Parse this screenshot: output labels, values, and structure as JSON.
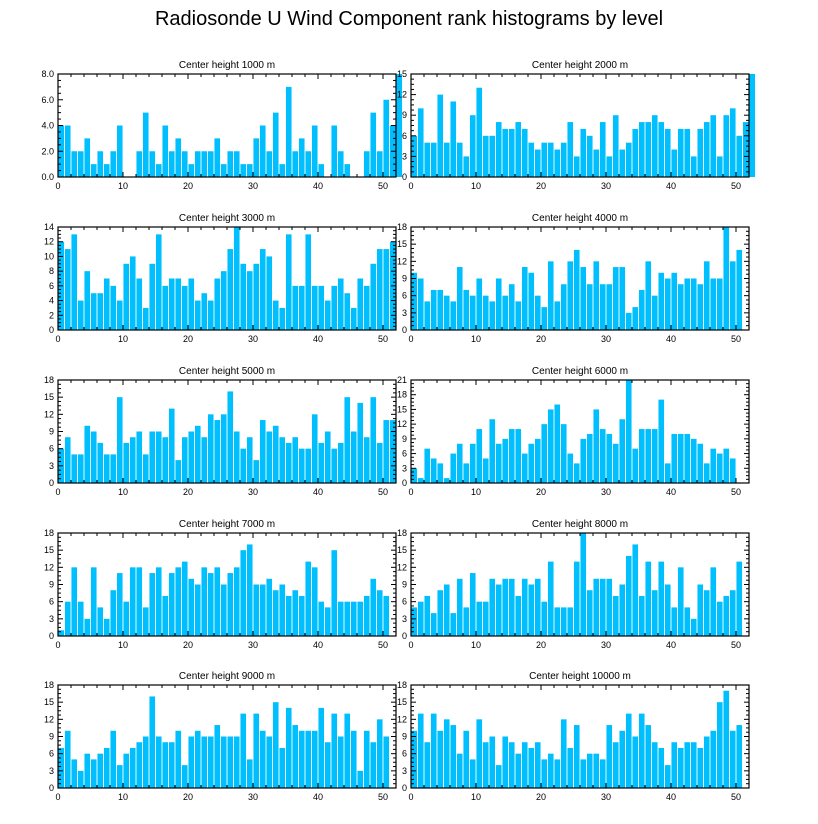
{
  "title": "Radiosonde U Wind Component rank histograms by level",
  "colors": {
    "bar": "#00BFFF",
    "axis": "#000000"
  },
  "chart_data": [
    {
      "type": "bar",
      "title": "Center height 1000 m",
      "xlim": [
        0,
        52
      ],
      "ylim": [
        0,
        8
      ],
      "yticks": [
        "0.0",
        "2.0",
        "4.0",
        "6.0",
        "8.0"
      ],
      "yticks_values": [
        0,
        2,
        4,
        6,
        8
      ],
      "xticks": [
        "0",
        "10",
        "20",
        "30",
        "40",
        "50"
      ],
      "values": [
        4,
        4,
        2,
        2,
        3,
        1,
        2,
        1,
        2,
        4,
        0,
        0,
        2,
        5,
        2,
        1,
        4,
        2,
        3,
        2,
        1,
        2,
        2,
        2,
        3,
        1,
        2,
        2,
        1,
        1,
        3,
        4,
        2,
        5,
        1,
        7,
        2,
        3,
        2,
        4,
        1,
        0,
        4,
        2,
        1,
        0,
        0,
        2,
        5,
        2,
        6,
        4,
        8
      ]
    },
    {
      "type": "bar",
      "title": "Center height 2000 m",
      "xlim": [
        0,
        52
      ],
      "ylim": [
        0,
        15
      ],
      "yticks": [
        "0",
        "3",
        "6",
        "9",
        "12",
        "15"
      ],
      "yticks_values": [
        0,
        3,
        6,
        9,
        12,
        15
      ],
      "xticks": [
        "0",
        "10",
        "20",
        "30",
        "40",
        "50"
      ],
      "values": [
        6,
        10,
        5,
        5,
        12,
        5,
        11,
        5,
        3,
        9,
        13,
        6,
        6,
        8,
        7,
        7,
        8,
        7,
        5,
        4,
        5,
        5,
        4,
        5,
        8,
        3,
        7,
        6,
        4,
        8,
        3,
        9,
        4,
        5,
        7,
        8,
        8,
        9,
        8,
        7,
        4,
        7,
        7,
        3,
        7,
        8,
        9,
        3,
        9,
        10,
        6,
        8,
        15
      ]
    },
    {
      "type": "bar",
      "title": "Center height 3000 m",
      "xlim": [
        0,
        52
      ],
      "ylim": [
        0,
        14
      ],
      "yticks": [
        "0",
        "2",
        "4",
        "6",
        "8",
        "10",
        "12",
        "14"
      ],
      "yticks_values": [
        0,
        2,
        4,
        6,
        8,
        10,
        12,
        14
      ],
      "xticks": [
        "0",
        "10",
        "20",
        "30",
        "40",
        "50"
      ],
      "values": [
        12,
        11,
        13,
        4,
        8,
        5,
        5,
        7,
        6,
        4,
        9,
        10,
        7,
        3,
        9,
        13,
        6,
        7,
        7,
        6,
        7,
        4,
        5,
        4,
        7,
        8,
        11,
        14,
        9,
        8,
        9,
        11,
        10,
        4,
        3,
        13,
        6,
        6,
        13,
        6,
        6,
        4,
        6,
        7,
        5,
        3,
        7,
        6,
        9,
        11,
        11,
        12
      ]
    },
    {
      "type": "bar",
      "title": "Center height 4000 m",
      "xlim": [
        0,
        52
      ],
      "ylim": [
        0,
        18
      ],
      "yticks": [
        "0",
        "3",
        "6",
        "9",
        "12",
        "15",
        "18"
      ],
      "yticks_values": [
        0,
        3,
        6,
        9,
        12,
        15,
        18
      ],
      "xticks": [
        "0",
        "10",
        "20",
        "30",
        "40",
        "50"
      ],
      "values": [
        10,
        9,
        5,
        7,
        7,
        6,
        5,
        11,
        7,
        6,
        9,
        6,
        5,
        9,
        6,
        8,
        5,
        11,
        10,
        6,
        4,
        12,
        5,
        8,
        12,
        14,
        11,
        8,
        12,
        8,
        8,
        11,
        11,
        3,
        4,
        7,
        12,
        6,
        10,
        9,
        10,
        8,
        9,
        9,
        8,
        12,
        9,
        9,
        18,
        12,
        14
      ]
    },
    {
      "type": "bar",
      "title": "Center height 5000 m",
      "xlim": [
        0,
        52
      ],
      "ylim": [
        0,
        18
      ],
      "yticks": [
        "0",
        "3",
        "6",
        "9",
        "12",
        "15",
        "18"
      ],
      "yticks_values": [
        0,
        3,
        6,
        9,
        12,
        15,
        18
      ],
      "xticks": [
        "0",
        "10",
        "20",
        "30",
        "40",
        "50"
      ],
      "values": [
        6,
        8,
        5,
        5,
        10,
        9,
        7,
        5,
        5,
        15,
        7,
        8,
        9,
        5,
        9,
        9,
        8,
        13,
        4,
        8,
        9,
        10,
        8,
        12,
        11,
        12,
        16,
        9,
        6,
        8,
        4,
        11,
        9,
        10,
        8,
        7,
        8,
        6,
        6,
        12,
        7,
        9,
        6,
        7,
        15,
        9,
        14,
        8,
        15,
        7,
        11,
        11
      ]
    },
    {
      "type": "bar",
      "title": "Center height 6000 m",
      "xlim": [
        0,
        52
      ],
      "ylim": [
        0,
        21
      ],
      "yticks": [
        "0",
        "3",
        "6",
        "9",
        "12",
        "15",
        "18",
        "21"
      ],
      "yticks_values": [
        0,
        3,
        6,
        9,
        12,
        15,
        18,
        21
      ],
      "xticks": [
        "0",
        "10",
        "20",
        "30",
        "40",
        "50"
      ],
      "values": [
        3,
        1,
        7,
        5,
        4,
        1,
        6,
        8,
        4,
        8,
        11,
        5,
        13,
        8,
        9,
        11,
        11,
        6,
        8,
        9,
        12,
        15,
        16,
        12,
        6,
        4,
        9,
        10,
        15,
        11,
        10,
        8,
        13,
        21,
        7,
        11,
        11,
        11,
        17,
        4,
        10,
        10,
        10,
        9,
        8,
        4,
        7,
        6,
        7,
        5
      ]
    },
    {
      "type": "bar",
      "title": "Center height 7000 m",
      "xlim": [
        0,
        52
      ],
      "ylim": [
        0,
        18
      ],
      "yticks": [
        "0",
        "3",
        "6",
        "9",
        "12",
        "15",
        "18"
      ],
      "yticks_values": [
        0,
        3,
        6,
        9,
        12,
        15,
        18
      ],
      "xticks": [
        "0",
        "10",
        "20",
        "30",
        "40",
        "50"
      ],
      "values": [
        1,
        6,
        12,
        6,
        3,
        12,
        5,
        3,
        8,
        11,
        6,
        12,
        12,
        5,
        11,
        12,
        7,
        11,
        12,
        13,
        10,
        9,
        12,
        11,
        12,
        9,
        11,
        12,
        15,
        16,
        9,
        9,
        10,
        8,
        9,
        7,
        8,
        7,
        13,
        12,
        6,
        5,
        15,
        6,
        6,
        6,
        6,
        7,
        10,
        8,
        7
      ]
    },
    {
      "type": "bar",
      "title": "Center height 8000 m",
      "xlim": [
        0,
        52
      ],
      "ylim": [
        0,
        18
      ],
      "yticks": [
        "0",
        "3",
        "6",
        "9",
        "12",
        "15",
        "18"
      ],
      "yticks_values": [
        0,
        3,
        6,
        9,
        12,
        15,
        18
      ],
      "xticks": [
        "0",
        "10",
        "20",
        "30",
        "40",
        "50"
      ],
      "values": [
        5,
        6,
        7,
        4,
        8,
        9,
        4,
        10,
        5,
        11,
        6,
        6,
        10,
        9,
        10,
        10,
        7,
        10,
        9,
        10,
        6,
        13,
        5,
        5,
        5,
        13,
        18,
        8,
        10,
        10,
        10,
        7,
        9,
        14,
        16,
        7,
        13,
        8,
        13,
        9,
        5,
        12,
        5,
        3,
        9,
        8,
        12,
        6,
        7,
        8,
        13
      ]
    },
    {
      "type": "bar",
      "title": "Center height 9000 m",
      "xlim": [
        0,
        52
      ],
      "ylim": [
        0,
        18
      ],
      "yticks": [
        "0",
        "3",
        "6",
        "9",
        "12",
        "15",
        "18"
      ],
      "yticks_values": [
        0,
        3,
        6,
        9,
        12,
        15,
        18
      ],
      "xticks": [
        "0",
        "10",
        "20",
        "30",
        "40",
        "50"
      ],
      "values": [
        7,
        10,
        5,
        3,
        6,
        5,
        6,
        7,
        10,
        4,
        6,
        7,
        8,
        9,
        16,
        9,
        8,
        8,
        10,
        4,
        9,
        10,
        9,
        9,
        11,
        9,
        9,
        9,
        13,
        5,
        13,
        10,
        9,
        15,
        7,
        14,
        11,
        10,
        10,
        10,
        14,
        8,
        13,
        9,
        13,
        10,
        3,
        10,
        8,
        12,
        9
      ]
    },
    {
      "type": "bar",
      "title": "Center height 10000 m",
      "xlim": [
        0,
        52
      ],
      "ylim": [
        0,
        18
      ],
      "yticks": [
        "0",
        "3",
        "6",
        "9",
        "12",
        "15",
        "18"
      ],
      "yticks_values": [
        0,
        3,
        6,
        9,
        12,
        15,
        18
      ],
      "xticks": [
        "0",
        "10",
        "20",
        "30",
        "40",
        "50"
      ],
      "values": [
        10,
        13,
        8,
        13,
        10,
        12,
        11,
        6,
        10,
        5,
        12,
        8,
        9,
        4,
        9,
        8,
        6,
        8,
        7,
        8,
        5,
        6,
        5,
        12,
        7,
        11,
        5,
        6,
        6,
        5,
        11,
        8,
        10,
        13,
        9,
        13,
        11,
        8,
        7,
        4,
        8,
        7,
        8,
        8,
        7,
        9,
        10,
        15,
        17,
        10,
        11
      ]
    }
  ]
}
